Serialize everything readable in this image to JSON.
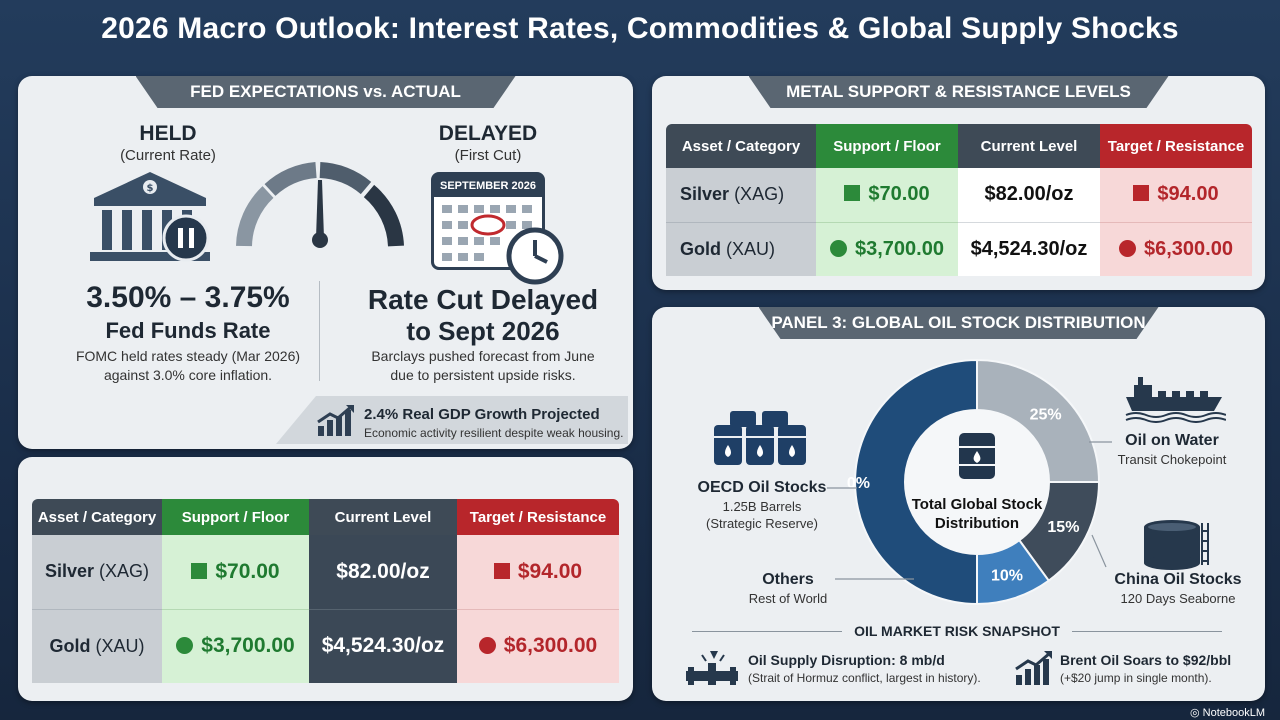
{
  "title": "2026 Macro Outlook: Interest Rates, Commodities & Global Supply Shocks",
  "fed": {
    "tab": "FED EXPECTATIONS vs. ACTUAL",
    "held": {
      "status": "HELD",
      "sub": "(Current Rate)",
      "rate": "3.50% – 3.75%",
      "rate_label": "Fed Funds Rate",
      "desc1": "FOMC held rates steady (Mar 2026)",
      "desc2": "against 3.0% core inflation."
    },
    "delayed": {
      "status": "DELAYED",
      "sub": "(First Cut)",
      "calendar_label": "SEPTEMBER 2026",
      "headline1": "Rate Cut Delayed",
      "headline2": "to Sept 2026",
      "desc1": "Barclays pushed forecast from June",
      "desc2": "due to persistent upside risks."
    },
    "gdp": {
      "title": "2.4% Real GDP Growth Projected",
      "sub": "Economic activity resilient despite weak housing."
    }
  },
  "metals_table_top": {
    "tab": "METAL SUPPORT & RESISTANCE LEVELS",
    "headers": [
      "Asset / Category",
      "Support / Floor",
      "Current Level",
      "Target / Resistance"
    ],
    "rows": [
      {
        "asset": "Silver",
        "code": "(XAG)",
        "support": "$70.00",
        "current": "$82.00/oz",
        "target": "$94.00"
      },
      {
        "asset": "Gold",
        "code": "(XAU)",
        "support": "$3,700.00",
        "current": "$4,524.30/oz",
        "target": "$6,300.00"
      }
    ]
  },
  "metals_table_bottom": {
    "headers": [
      "Asset / Category",
      "Support / Floor",
      "Current Level",
      "Target / Resistance"
    ],
    "rows": [
      {
        "asset": "Silver",
        "code": "(XAG)",
        "support": "$70.00",
        "current": "$82.00/oz",
        "target": "$94.00"
      },
      {
        "asset": "Gold",
        "code": "(XAU)",
        "support": "$3,700.00",
        "current": "$4,524.30/oz",
        "target": "$6,300.00"
      }
    ]
  },
  "oil": {
    "tab": "PANEL 3: GLOBAL OIL STOCK DISTRIBUTION",
    "center1": "Total Global Stock",
    "center2": "Distribution",
    "slices": [
      {
        "name": "OECD Oil Stocks",
        "value": 50,
        "label": "50%",
        "color": "#1f4c7a"
      },
      {
        "name": "Oil on Water",
        "value": 25,
        "label": "25%",
        "color": "#a9b2bb"
      },
      {
        "name": "China Oil Stocks",
        "value": 15,
        "label": "15%",
        "color": "#3f4c5b"
      },
      {
        "name": "Others",
        "value": 10,
        "label": "10%",
        "color": "#3f7fbd"
      }
    ],
    "legend": {
      "oecd_title": "OECD Oil Stocks",
      "oecd_sub1": "1.25B Barrels",
      "oecd_sub2": "(Strategic Reserve)",
      "water_title": "Oil on Water",
      "water_sub": "Transit Chokepoint",
      "china_title": "China Oil Stocks",
      "china_sub": "120 Days Seaborne",
      "others_title": "Others",
      "others_sub": "Rest of World"
    },
    "risk": {
      "title": "OIL MARKET RISK SNAPSHOT",
      "disruption_title": "Oil Supply Disruption: 8 mb/d",
      "disruption_sub": "(Strait of Hormuz conflict, largest in history).",
      "brent_title": "Brent Oil Soars to $92/bbl",
      "brent_sub": "(+$20 jump in single month)."
    }
  },
  "watermark": "NotebookLM"
}
